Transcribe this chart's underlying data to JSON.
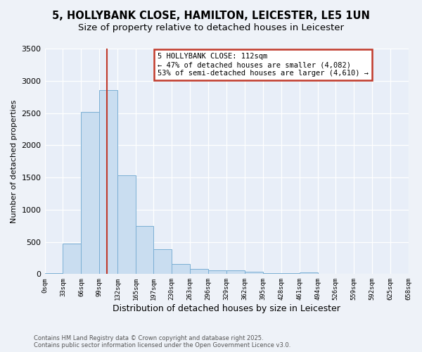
{
  "title_line1": "5, HOLLYBANK CLOSE, HAMILTON, LEICESTER, LE5 1UN",
  "title_line2": "Size of property relative to detached houses in Leicester",
  "xlabel": "Distribution of detached houses by size in Leicester",
  "ylabel": "Number of detached properties",
  "bin_edges": [
    0,
    33,
    66,
    99,
    132,
    165,
    197,
    230,
    263,
    296,
    329,
    362,
    395,
    428,
    461,
    494,
    526,
    559,
    592,
    625,
    658
  ],
  "counts": [
    20,
    470,
    2520,
    2850,
    1530,
    750,
    390,
    155,
    75,
    55,
    55,
    40,
    15,
    15,
    30,
    5,
    5,
    0,
    0,
    0
  ],
  "bar_color": "#c9ddf0",
  "bar_edge_color": "#7bafd4",
  "property_size": 112,
  "vline_color": "#c0392b",
  "annotation_text": "5 HOLLYBANK CLOSE: 112sqm\n← 47% of detached houses are smaller (4,082)\n53% of semi-detached houses are larger (4,610) →",
  "annotation_box_color": "#ffffff",
  "annotation_border_color": "#c0392b",
  "ylim": [
    0,
    3500
  ],
  "background_color": "#eef2f8",
  "plot_bg_color": "#e8eef8",
  "footer_line1": "Contains HM Land Registry data © Crown copyright and database right 2025.",
  "footer_line2": "Contains public sector information licensed under the Open Government Licence v3.0.",
  "title_fontsize": 10.5,
  "subtitle_fontsize": 9.5,
  "tick_labels": [
    "0sqm",
    "33sqm",
    "66sqm",
    "99sqm",
    "132sqm",
    "165sqm",
    "197sqm",
    "230sqm",
    "263sqm",
    "296sqm",
    "329sqm",
    "362sqm",
    "395sqm",
    "428sqm",
    "461sqm",
    "494sqm",
    "526sqm",
    "559sqm",
    "592sqm",
    "625sqm",
    "658sqm"
  ],
  "yticks": [
    0,
    500,
    1000,
    1500,
    2000,
    2500,
    3000,
    3500
  ]
}
